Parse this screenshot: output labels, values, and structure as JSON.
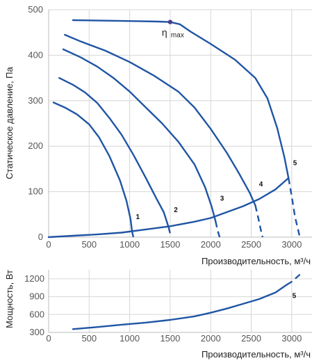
{
  "chart_data": [
    {
      "type": "line",
      "title": "",
      "xlabel": "Производительность, м³/ч",
      "ylabel": "Статическое давление, Па",
      "xlim": [
        0,
        3250
      ],
      "ylim": [
        0,
        500
      ],
      "x_ticks": [
        0,
        500,
        1000,
        1500,
        2000,
        2500,
        3000
      ],
      "y_ticks": [
        0,
        100,
        200,
        300,
        400,
        500
      ],
      "grid": true,
      "line_color": "#1f55a4",
      "series": [
        {
          "name": "1",
          "solid": [
            [
              60,
              296
            ],
            [
              200,
              285
            ],
            [
              350,
              270
            ],
            [
              500,
              248
            ],
            [
              620,
              220
            ],
            [
              750,
              178
            ],
            [
              880,
              125
            ],
            [
              960,
              80
            ],
            [
              1010,
              40
            ],
            [
              1030,
              12
            ]
          ],
          "dashed": [
            [
              1030,
              12
            ],
            [
              1045,
              0
            ]
          ],
          "label_at": [
            1100,
            40
          ]
        },
        {
          "name": "2",
          "solid": [
            [
              130,
              350
            ],
            [
              300,
              335
            ],
            [
              450,
              318
            ],
            [
              600,
              295
            ],
            [
              750,
              262
            ],
            [
              900,
              225
            ],
            [
              1050,
              180
            ],
            [
              1200,
              130
            ],
            [
              1330,
              85
            ],
            [
              1420,
              55
            ],
            [
              1480,
              22
            ]
          ],
          "dashed": [
            [
              1480,
              22
            ],
            [
              1510,
              0
            ]
          ],
          "label_at": [
            1570,
            55
          ]
        },
        {
          "name": "3",
          "solid": [
            [
              180,
              413
            ],
            [
              400,
              395
            ],
            [
              600,
              375
            ],
            [
              800,
              350
            ],
            [
              1000,
              320
            ],
            [
              1200,
              285
            ],
            [
              1400,
              250
            ],
            [
              1600,
              210
            ],
            [
              1800,
              160
            ],
            [
              1930,
              110
            ],
            [
              2010,
              68
            ],
            [
              2060,
              35
            ]
          ],
          "dashed": [
            [
              2060,
              35
            ],
            [
              2085,
              15
            ],
            [
              2110,
              0
            ]
          ],
          "label_at": [
            2140,
            80
          ]
        },
        {
          "name": "4",
          "solid": [
            [
              200,
              445
            ],
            [
              400,
              430
            ],
            [
              700,
              410
            ],
            [
              1000,
              385
            ],
            [
              1300,
              355
            ],
            [
              1600,
              320
            ],
            [
              1800,
              285
            ],
            [
              2000,
              238
            ],
            [
              2200,
              185
            ],
            [
              2350,
              140
            ],
            [
              2480,
              98
            ],
            [
              2550,
              70
            ]
          ],
          "dashed": [
            [
              2550,
              70
            ],
            [
              2590,
              40
            ],
            [
              2620,
              15
            ],
            [
              2640,
              0
            ]
          ],
          "label_at": [
            2620,
            112
          ]
        },
        {
          "name": "5",
          "solid": [
            [
              300,
              477
            ],
            [
              700,
              476
            ],
            [
              1100,
              475
            ],
            [
              1350,
              474
            ],
            [
              1500,
              473
            ],
            [
              1620,
              468
            ],
            [
              1750,
              452
            ],
            [
              2000,
              425
            ],
            [
              2300,
              390
            ],
            [
              2550,
              350
            ],
            [
              2700,
              305
            ],
            [
              2820,
              240
            ],
            [
              2910,
              175
            ],
            [
              2960,
              130
            ]
          ],
          "dashed": [
            [
              2960,
              130
            ],
            [
              3000,
              90
            ],
            [
              3040,
              45
            ],
            [
              3080,
              15
            ],
            [
              3100,
              0
            ]
          ],
          "label_at": [
            3040,
            158
          ]
        },
        {
          "name": "",
          "solid": [
            [
              0,
              0
            ],
            [
              300,
              3
            ],
            [
              600,
              6
            ],
            [
              900,
              10
            ],
            [
              1200,
              17
            ],
            [
              1500,
              24
            ],
            [
              1800,
              34
            ],
            [
              2000,
              42
            ],
            [
              2200,
              55
            ],
            [
              2400,
              68
            ],
            [
              2600,
              84
            ],
            [
              2800,
              105
            ],
            [
              2960,
              130
            ]
          ],
          "dashed": []
        }
      ],
      "annotations": [
        {
          "text": "η",
          "subscript": "max",
          "x": 1500,
          "y": 473,
          "marker": true
        }
      ]
    },
    {
      "type": "line",
      "title": "",
      "xlabel": "Производительность, м³/ч",
      "ylabel": "Мощность, Вт",
      "xlim": [
        0,
        3250
      ],
      "ylim": [
        300,
        1350
      ],
      "x_ticks": [
        0,
        500,
        1000,
        1500,
        2000,
        2500,
        3000
      ],
      "y_ticks": [
        300,
        600,
        900,
        1200
      ],
      "grid": true,
      "line_color": "#1f55a4",
      "series": [
        {
          "name": "5",
          "solid": [
            [
              300,
              355
            ],
            [
              600,
              390
            ],
            [
              900,
              430
            ],
            [
              1200,
              465
            ],
            [
              1500,
              510
            ],
            [
              1800,
              570
            ],
            [
              2000,
              630
            ],
            [
              2200,
              700
            ],
            [
              2400,
              780
            ],
            [
              2600,
              860
            ],
            [
              2800,
              970
            ],
            [
              2940,
              1100
            ]
          ],
          "dashed": [
            [
              2940,
              1100
            ],
            [
              3000,
              1150
            ],
            [
              3100,
              1270
            ],
            [
              3130,
              1290
            ]
          ],
          "label_at": [
            3030,
            880
          ]
        }
      ],
      "annotations": []
    }
  ]
}
